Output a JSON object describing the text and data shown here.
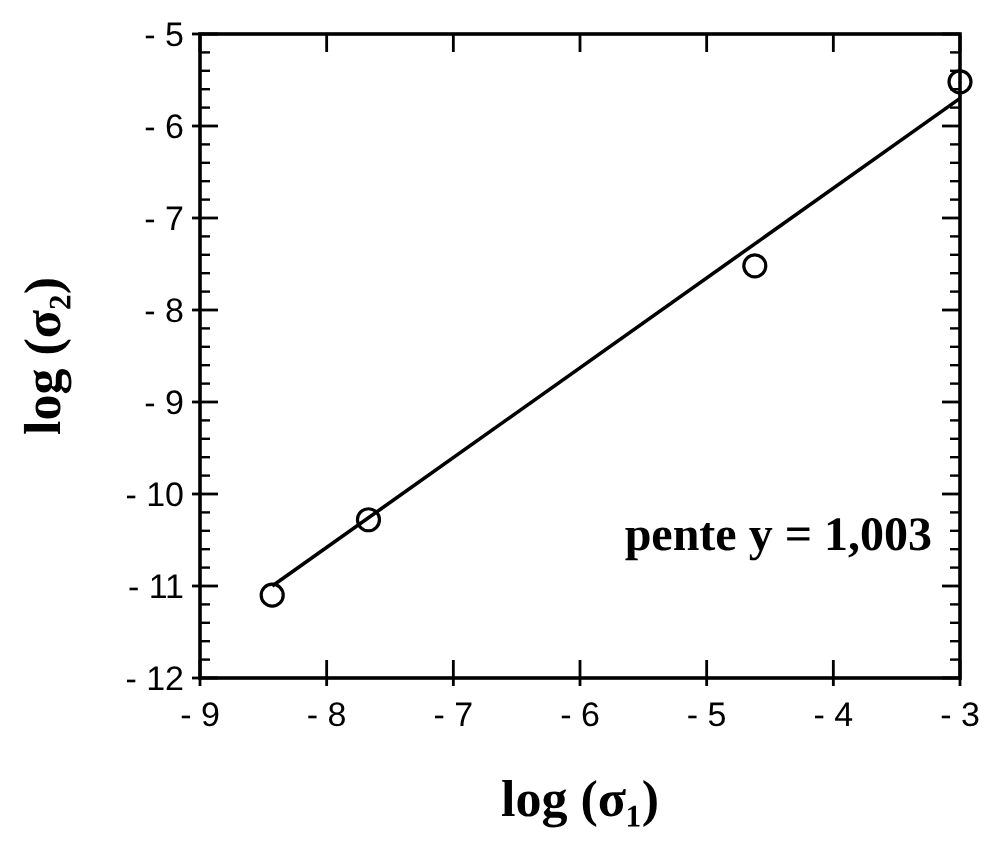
{
  "chart_data": {
    "type": "scatter",
    "xlabel": "log (σ₁)",
    "ylabel": "log (σ₂)",
    "annotations": [
      "pente y = 1,003"
    ],
    "xlim": [
      -9,
      -3
    ],
    "ylim": [
      -12,
      -5
    ],
    "xticks": [
      {
        "value": -9,
        "label": "- 9"
      },
      {
        "value": -8,
        "label": "- 8"
      },
      {
        "value": -7,
        "label": "- 7"
      },
      {
        "value": -6,
        "label": "- 6"
      },
      {
        "value": -5,
        "label": "- 5"
      },
      {
        "value": -4,
        "label": "- 4"
      },
      {
        "value": -3,
        "label": "- 3"
      }
    ],
    "yticks": [
      {
        "value": -12,
        "label": "- 12"
      },
      {
        "value": -11,
        "label": "- 11"
      },
      {
        "value": -10,
        "label": "- 10"
      },
      {
        "value": -9,
        "label": "- 9"
      },
      {
        "value": -8,
        "label": "- 8"
      },
      {
        "value": -7,
        "label": "- 7"
      },
      {
        "value": -6,
        "label": "- 6"
      },
      {
        "value": -5,
        "label": "- 5"
      }
    ],
    "marker": "circle",
    "grid": false,
    "series": [
      {
        "color": "#000000",
        "x": [
          -8.43,
          -7.67,
          -4.62,
          -3
        ],
        "values": [
          -11.1,
          -10.28,
          -7.52,
          -5.52
        ]
      },
      {
        "type": "line",
        "color": "#000000",
        "marker": "none",
        "x": [
          -8.43,
          -3
        ],
        "values": [
          -11.0,
          -5.7
        ]
      }
    ]
  }
}
